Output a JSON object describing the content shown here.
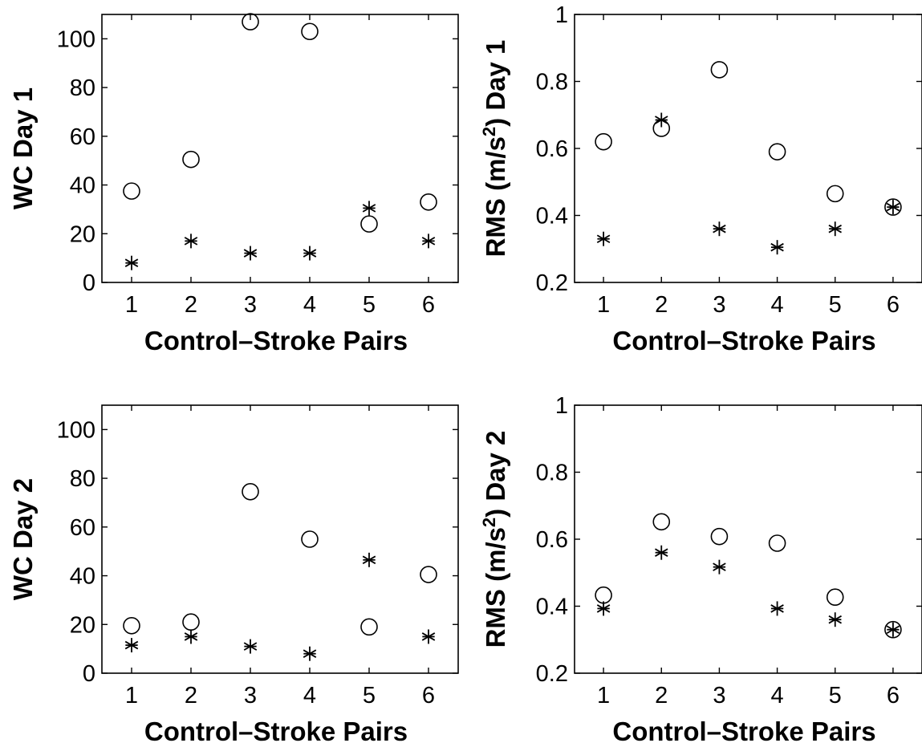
{
  "chart_data": [
    {
      "type": "scatter",
      "xlabel": "Control–Stroke Pairs",
      "ylabel": "WC Day 1",
      "xlim": [
        0.5,
        6.5
      ],
      "ylim": [
        0,
        110
      ],
      "x": [
        1,
        2,
        3,
        4,
        5,
        6
      ],
      "xticks": [
        "1",
        "2",
        "3",
        "4",
        "5",
        "6"
      ],
      "yticks": [
        "0",
        "20",
        "40",
        "60",
        "80",
        "100"
      ],
      "grid": false,
      "series": [
        {
          "marker": "circle",
          "values": [
            37.5,
            50.5,
            107,
            103,
            24,
            33
          ]
        },
        {
          "marker": "asterisk",
          "values": [
            8,
            17,
            12,
            12,
            30.5,
            17
          ]
        }
      ]
    },
    {
      "type": "scatter",
      "xlabel": "Control–Stroke Pairs",
      "ylabel": "RMS (m/s²) Day 1",
      "xlim": [
        0.5,
        6.5
      ],
      "ylim": [
        0.2,
        1
      ],
      "x": [
        1,
        2,
        3,
        4,
        5,
        6
      ],
      "xticks": [
        "1",
        "2",
        "3",
        "4",
        "5",
        "6"
      ],
      "yticks": [
        "0.2",
        "0.4",
        "0.6",
        "0.8",
        "1"
      ],
      "grid": false,
      "series": [
        {
          "marker": "circle",
          "values": [
            0.62,
            0.66,
            0.835,
            0.59,
            0.465,
            0.425
          ]
        },
        {
          "marker": "asterisk",
          "values": [
            0.33,
            0.685,
            0.36,
            0.305,
            0.36,
            0.425
          ]
        }
      ]
    },
    {
      "type": "scatter",
      "xlabel": "Control–Stroke Pairs",
      "ylabel": "WC Day 2",
      "xlim": [
        0.5,
        6.5
      ],
      "ylim": [
        0,
        110
      ],
      "x": [
        1,
        2,
        3,
        4,
        5,
        6
      ],
      "xticks": [
        "1",
        "2",
        "3",
        "4",
        "5",
        "6"
      ],
      "yticks": [
        "0",
        "20",
        "40",
        "60",
        "80",
        "100"
      ],
      "grid": false,
      "series": [
        {
          "marker": "circle",
          "values": [
            19.5,
            21,
            74.5,
            55,
            19,
            40.5
          ]
        },
        {
          "marker": "asterisk",
          "values": [
            11.5,
            15,
            11,
            8,
            46.5,
            15
          ]
        }
      ]
    },
    {
      "type": "scatter",
      "xlabel": "Control–Stroke Pairs",
      "ylabel": "RMS (m/s²) Day 2",
      "xlim": [
        0.5,
        6.5
      ],
      "ylim": [
        0.2,
        1
      ],
      "x": [
        1,
        2,
        3,
        4,
        5,
        6
      ],
      "xticks": [
        "1",
        "2",
        "3",
        "4",
        "5",
        "6"
      ],
      "yticks": [
        "0.2",
        "0.4",
        "0.6",
        "0.8",
        "1"
      ],
      "grid": false,
      "series": [
        {
          "marker": "circle",
          "values": [
            0.433,
            0.652,
            0.608,
            0.588,
            0.427,
            0.33
          ]
        },
        {
          "marker": "asterisk",
          "values": [
            0.393,
            0.56,
            0.517,
            0.393,
            0.36,
            0.33
          ]
        }
      ]
    }
  ]
}
